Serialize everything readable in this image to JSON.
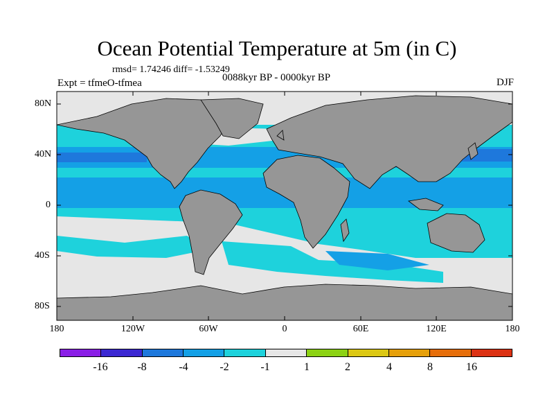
{
  "title": "Ocean Potential Temperature at 5m (in C)",
  "stats": "rmsd= 1.74246 diff= -1.53249",
  "experiment": "Expt = tfmeO-tfmea",
  "period": "0088kyr BP - 0000kyr BP",
  "season": "DJF",
  "lat_ticks": [
    "80N",
    "40N",
    "0",
    "40S",
    "80S"
  ],
  "lon_ticks": [
    "180",
    "120W",
    "60W",
    "0",
    "60E",
    "120E",
    "180"
  ],
  "colorbar": {
    "colors": [
      "#8a1ee6",
      "#3c28d2",
      "#1e78dc",
      "#14a0e6",
      "#1ed2dc",
      "#e6e6e6",
      "#8cd214",
      "#dcc814",
      "#e6a00a",
      "#e66e0a",
      "#dc3214"
    ],
    "labels": [
      "-16",
      "-8",
      "-4",
      "-2",
      "-1",
      "1",
      "2",
      "4",
      "8",
      "16"
    ]
  },
  "colors": {
    "land": "#969696",
    "ocean_cyan": "#1ed2dc",
    "ocean_blue": "#14a0e6",
    "ocean_deep": "#1e78dc",
    "neutral": "#e6e6e6"
  }
}
